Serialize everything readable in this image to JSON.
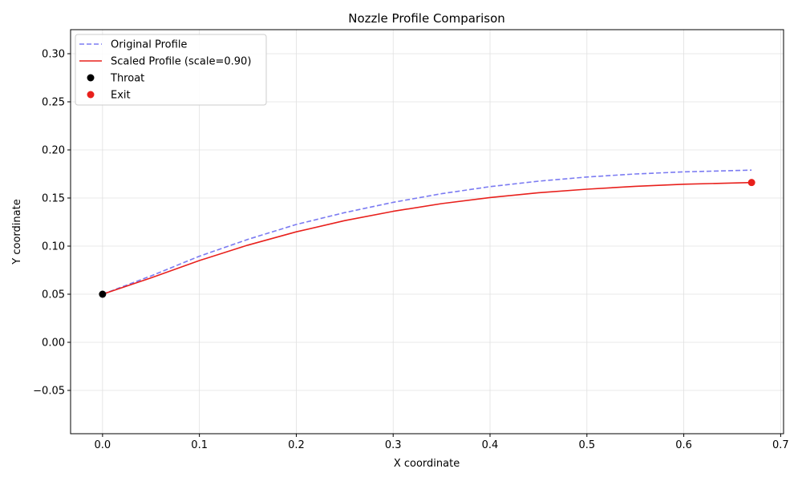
{
  "chart_data": {
    "type": "line",
    "title": "Nozzle Profile Comparison",
    "xlabel": "X coordinate",
    "ylabel": "Y coordinate",
    "xlim": [
      -0.033,
      0.703
    ],
    "ylim": [
      -0.095,
      0.325
    ],
    "xticks": [
      0.0,
      0.1,
      0.2,
      0.3,
      0.4,
      0.5,
      0.6,
      0.7
    ],
    "xtick_labels": [
      "0.0",
      "0.1",
      "0.2",
      "0.3",
      "0.4",
      "0.5",
      "0.6",
      "0.7"
    ],
    "yticks": [
      -0.05,
      0.0,
      0.05,
      0.1,
      0.15,
      0.2,
      0.25,
      0.3
    ],
    "ytick_labels": [
      "−0.05",
      "0.00",
      "0.05",
      "0.10",
      "0.15",
      "0.20",
      "0.25",
      "0.30"
    ],
    "grid": true,
    "legend_position": "top-left",
    "series": [
      {
        "name": "Original Profile",
        "style": "dashed",
        "color": "#7b7bf2",
        "x": [
          0.0,
          0.05,
          0.1,
          0.15,
          0.2,
          0.25,
          0.3,
          0.35,
          0.4,
          0.45,
          0.5,
          0.55,
          0.6,
          0.67
        ],
        "y": [
          0.05,
          0.069,
          0.0895,
          0.107,
          0.1225,
          0.1348,
          0.1455,
          0.1545,
          0.1618,
          0.1675,
          0.1718,
          0.175,
          0.1772,
          0.179
        ]
      },
      {
        "name": "Scaled Profile (scale=0.90)",
        "style": "solid",
        "color": "#e8201c",
        "x": [
          0.0,
          0.05,
          0.1,
          0.15,
          0.2,
          0.25,
          0.3,
          0.35,
          0.4,
          0.45,
          0.5,
          0.55,
          0.6,
          0.67
        ],
        "y": [
          0.05,
          0.067,
          0.085,
          0.101,
          0.1148,
          0.1265,
          0.1362,
          0.1442,
          0.1505,
          0.1555,
          0.1592,
          0.1622,
          0.1643,
          0.1661
        ]
      },
      {
        "name": "Throat",
        "style": "marker",
        "color": "#000000",
        "x": [
          0.0
        ],
        "y": [
          0.05
        ]
      },
      {
        "name": "Exit",
        "style": "marker",
        "color": "#e8201c",
        "x": [
          0.67
        ],
        "y": [
          0.1661
        ]
      }
    ]
  }
}
